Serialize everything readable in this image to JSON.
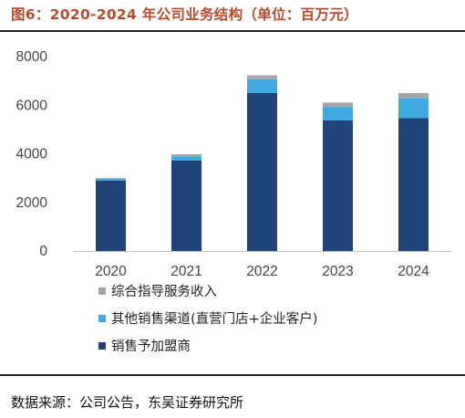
{
  "title": "图6：2020-2024 年公司业务结构（单位：百万元）",
  "source": "数据来源：公司公告，东吴证券研究所",
  "colors": {
    "title": "#B84A2A",
    "franchise": "#1F4479",
    "other_channels": "#3FA9E2",
    "services": "#A6A6A6"
  },
  "chart_data": {
    "type": "bar",
    "stacked": true,
    "categories": [
      "2020",
      "2021",
      "2022",
      "2023",
      "2024"
    ],
    "series": [
      {
        "name": "销售予加盟商",
        "color": "#1F4479",
        "values": [
          2900,
          3720,
          6500,
          5380,
          5470
        ]
      },
      {
        "name": "其他销售渠道(直营门店+企业客户)",
        "color": "#3FA9E2",
        "values": [
          70,
          180,
          570,
          550,
          830
        ]
      },
      {
        "name": "综合指导服务收入",
        "color": "#A6A6A6",
        "values": [
          30,
          80,
          160,
          180,
          200
        ]
      }
    ],
    "ylim": [
      0,
      8000
    ],
    "yticks": [
      0,
      2000,
      4000,
      6000,
      8000
    ],
    "grid": false,
    "legend_position": "bottom-left",
    "legend_order": [
      2,
      1,
      0
    ]
  }
}
